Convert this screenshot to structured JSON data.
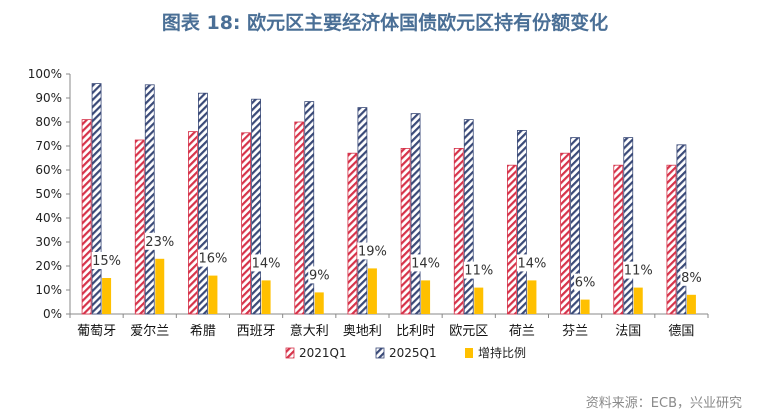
{
  "title": "图表 18: 欧元区主要经济体国债欧元区持有份额变化",
  "source": "资料来源：ECB，兴业研究",
  "chart_data": {
    "type": "bar",
    "title": "图表 18: 欧元区主要经济体国债欧元区持有份额变化",
    "categories": [
      "葡萄牙",
      "爱尔兰",
      "希腊",
      "西班牙",
      "意大利",
      "奥地利",
      "比利时",
      "欧元区",
      "荷兰",
      "芬兰",
      "法国",
      "德国"
    ],
    "ylim": [
      0,
      100
    ],
    "yticks": [
      "0%",
      "10%",
      "20%",
      "30%",
      "40%",
      "50%",
      "60%",
      "70%",
      "80%",
      "90%",
      "100%"
    ],
    "grid": false,
    "legend_position": "bottom",
    "series": [
      {
        "name": "2021Q1",
        "color": "#d6334a",
        "pattern": "red-diagonal-hatch",
        "values": [
          81,
          72.5,
          76,
          75.5,
          80,
          67,
          69,
          69,
          62,
          67,
          62,
          62
        ]
      },
      {
        "name": "2025Q1",
        "color": "#3a4a78",
        "pattern": "navy-diagonal-hatch",
        "values": [
          96,
          95.5,
          92,
          89.5,
          88.5,
          86,
          83.5,
          81,
          76.5,
          73.5,
          73.5,
          70.5
        ]
      },
      {
        "name": "增持比例",
        "color": "#ffc000",
        "pattern": "solid",
        "values": [
          15,
          23,
          16,
          14,
          9,
          19,
          14,
          11,
          14,
          6,
          11,
          8
        ],
        "labels": [
          "15%",
          "23%",
          "16%",
          "14%",
          "9%",
          "19%",
          "14%",
          "11%",
          "14%",
          "6%",
          "11%",
          "8%"
        ]
      }
    ]
  }
}
